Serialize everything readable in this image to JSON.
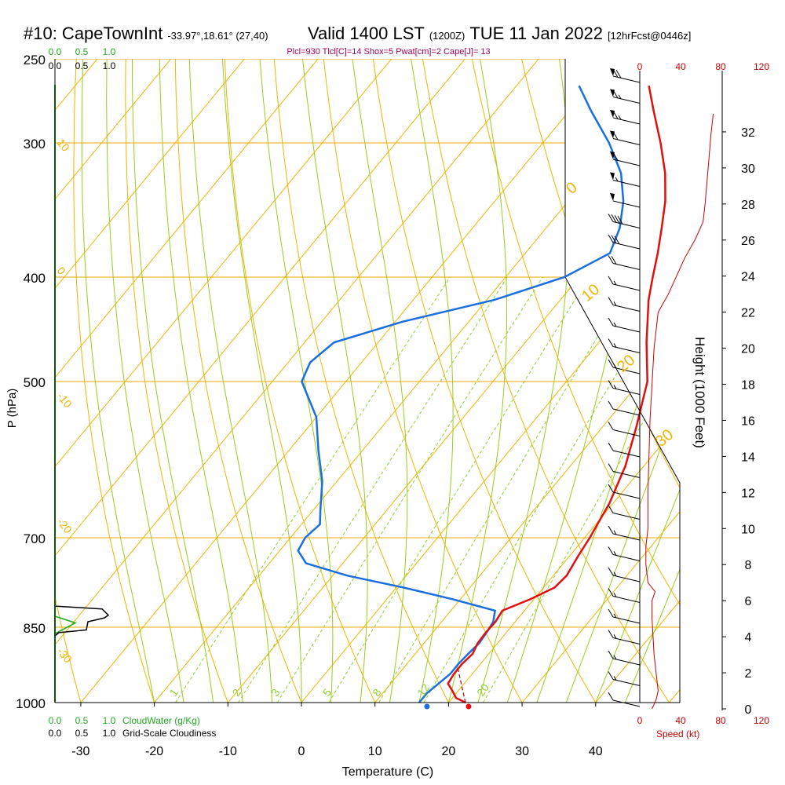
{
  "header": {
    "station": "#10: CapeTownInt",
    "coords": "-33.97°,18.61° (27,40)",
    "valid": "Valid 1400 LST",
    "zulu": "(1200Z)",
    "date": "TUE 11 Jan 2022",
    "forecast": "[12hrFcst@0446z]",
    "params": "Plcl=930 Tlcl[C]=14 Shox=5 Pwat[cm]=2 Cape[J]= 13"
  },
  "colors": {
    "isobar": "#e8a800",
    "dry_adiabat": "#f0b400",
    "moist_adiabat": "#9bcc1c",
    "mixing_ratio": "#8fd22a",
    "temperature": "#e01010",
    "dewpoint": "#1a6fe0",
    "cloud": "#22aa22",
    "params": "#a0005a",
    "wind_speed": "#cc0000"
  },
  "chart_data": {
    "type": "skew-t",
    "title": "#10: CapeTownInt Valid 1400 LST (1200Z) TUE 11 Jan 2022",
    "xlabel": "Temperature (C)",
    "ylabel": "P (hPa)",
    "y2label": "Height (1000 Feet)",
    "x_ticks": [
      "-30",
      "-20",
      "-10",
      "0",
      "10",
      "20",
      "30",
      "40"
    ],
    "x_tick_values": [
      -30,
      -20,
      -10,
      0,
      10,
      20,
      30,
      40
    ],
    "xlim": [
      -34,
      47
    ],
    "ylim": [
      1000,
      250
    ],
    "pressure_levels": [
      250,
      300,
      400,
      500,
      700,
      850,
      1000
    ],
    "pressure_labels": [
      "250",
      "300",
      "400",
      "500",
      "700",
      "850",
      "1000"
    ],
    "height_ticks_kft": [
      0,
      2,
      4,
      6,
      8,
      10,
      12,
      14,
      16,
      18,
      20,
      22,
      24,
      26,
      28,
      30,
      32
    ],
    "height_labels": [
      "0",
      "2",
      "4",
      "6",
      "8",
      "10",
      "12",
      "14",
      "16",
      "18",
      "20",
      "22",
      "24",
      "26",
      "28",
      "30",
      "32"
    ],
    "speed_ticks": [
      "0",
      "40",
      "80",
      "120"
    ],
    "speed_label": "Speed (kt)",
    "cloud_scale_top": [
      "0.0",
      "0.5",
      "1.0"
    ],
    "cloud_scale_bottom": [
      "0.0",
      "0.5",
      "1.0"
    ],
    "cloudwater_label": "CloudWater (g/Kg)",
    "cloudiness_label": "Grid-Scale Cloudiness",
    "mixing_ratio_labels": [
      "1",
      "2",
      "3",
      "5",
      "8",
      "12",
      "20"
    ],
    "mixing_ratio_values": [
      1,
      2,
      3,
      5,
      8,
      12,
      20
    ],
    "moist_labels": [
      "0",
      "10",
      "20",
      "30"
    ],
    "dry_labels": [
      "10",
      "0",
      "-10",
      "-20",
      "-30"
    ],
    "temperature": {
      "name": "Temperature",
      "points": [
        [
          1000,
          22.3
        ],
        [
          990,
          20.5
        ],
        [
          975,
          19.2
        ],
        [
          960,
          17.8
        ],
        [
          940,
          17.5
        ],
        [
          920,
          17.5
        ],
        [
          900,
          17.8
        ],
        [
          880,
          17.3
        ],
        [
          860,
          17.2
        ],
        [
          840,
          17.3
        ],
        [
          820,
          17.0
        ],
        [
          800,
          19.5
        ],
        [
          780,
          21.5
        ],
        [
          760,
          21.8
        ],
        [
          730,
          21.2
        ],
        [
          700,
          20.7
        ],
        [
          650,
          19.5
        ],
        [
          600,
          17.5
        ],
        [
          550,
          14.5
        ],
        [
          500,
          11.0
        ],
        [
          460,
          6.5
        ],
        [
          420,
          2.0
        ],
        [
          400,
          0.0
        ],
        [
          380,
          -2.0
        ],
        [
          360,
          -4.3
        ],
        [
          340,
          -6.8
        ],
        [
          320,
          -10.0
        ],
        [
          300,
          -14.0
        ],
        [
          280,
          -18.5
        ],
        [
          265,
          -22.0
        ]
      ]
    },
    "dewpoint": {
      "name": "Dewpoint",
      "points": [
        [
          1000,
          16.0
        ],
        [
          980,
          16.0
        ],
        [
          960,
          16.5
        ],
        [
          940,
          17.0
        ],
        [
          920,
          17.0
        ],
        [
          900,
          17.2
        ],
        [
          880,
          17.5
        ],
        [
          860,
          17.3
        ],
        [
          840,
          17.0
        ],
        [
          820,
          16.0
        ],
        [
          800,
          9.0
        ],
        [
          780,
          1.0
        ],
        [
          760,
          -8.0
        ],
        [
          740,
          -15.0
        ],
        [
          720,
          -17.5
        ],
        [
          700,
          -18.0
        ],
        [
          680,
          -17.5
        ],
        [
          660,
          -19.0
        ],
        [
          620,
          -22.0
        ],
        [
          580,
          -26.0
        ],
        [
          540,
          -30.0
        ],
        [
          500,
          -36.0
        ],
        [
          480,
          -37.0
        ],
        [
          460,
          -36.0
        ],
        [
          440,
          -29.0
        ],
        [
          420,
          -19.0
        ],
        [
          400,
          -12.0
        ],
        [
          380,
          -8.5
        ],
        [
          360,
          -10.0
        ],
        [
          340,
          -12.5
        ],
        [
          320,
          -16.0
        ],
        [
          300,
          -21.0
        ],
        [
          280,
          -27.0
        ],
        [
          265,
          -31.5
        ]
      ]
    },
    "wind_speed_kt": {
      "name": "Wind speed",
      "points": [
        [
          0,
          12
        ],
        [
          0.5,
          16
        ],
        [
          1,
          18
        ],
        [
          2,
          16
        ],
        [
          3,
          14
        ],
        [
          4,
          13
        ],
        [
          5,
          12
        ],
        [
          6,
          12
        ],
        [
          6.5,
          15
        ],
        [
          7,
          8
        ],
        [
          8,
          6
        ],
        [
          9,
          6
        ],
        [
          10,
          8
        ],
        [
          12,
          8
        ],
        [
          14,
          9
        ],
        [
          16,
          10
        ],
        [
          18,
          12
        ],
        [
          20,
          14
        ],
        [
          22,
          18
        ],
        [
          23,
          28
        ],
        [
          24,
          36
        ],
        [
          25,
          44
        ],
        [
          26,
          54
        ],
        [
          27,
          62
        ],
        [
          28,
          64
        ],
        [
          30,
          67
        ],
        [
          32,
          70
        ],
        [
          33,
          72
        ]
      ]
    },
    "cloudwater": [
      [
        830,
        0.0
      ],
      [
        848,
        0.4
      ],
      [
        862,
        0.0
      ]
    ],
    "cloudiness": [
      [
        815,
        1.0
      ],
      [
        835,
        1.05
      ],
      [
        865,
        0.6
      ],
      [
        880,
        0.4
      ]
    ],
    "wind_barbs_kt": [
      12,
      14,
      15,
      16,
      16,
      16,
      15,
      14,
      13,
      12,
      12,
      12,
      12,
      12,
      12,
      13,
      14,
      14,
      15,
      16,
      17,
      20,
      30,
      40,
      50,
      55,
      60,
      62,
      64,
      66,
      68
    ]
  }
}
